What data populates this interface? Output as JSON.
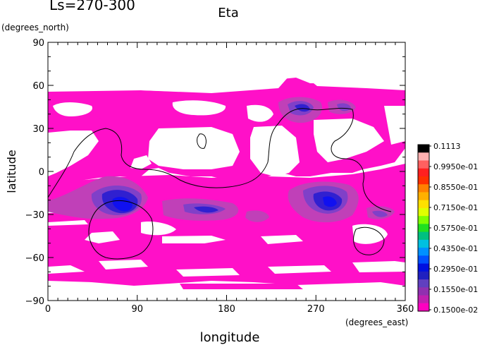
{
  "chart_data": {
    "type": "heatmap",
    "title": "Eta",
    "subtitle": "Ls=270-300",
    "xlabel": "longitude",
    "ylabel": "latitude",
    "xunits": "(degrees_east)",
    "yunits": "(degrees_north)",
    "xlim": [
      0,
      360
    ],
    "ylim": [
      -90,
      90
    ],
    "xticks": [
      "0",
      "90",
      "180",
      "270",
      "360"
    ],
    "xtick_values": [
      0,
      90,
      180,
      270,
      360
    ],
    "yticks": [
      "90",
      "60",
      "30",
      "0",
      "−30",
      "−60",
      "−90"
    ],
    "ytick_values": [
      90,
      60,
      30,
      0,
      -30,
      -60,
      -90
    ],
    "grid": false,
    "colorbar": {
      "labels": [
        "0.1113",
        "0.9950e-01",
        "0.8550e-01",
        "0.7150e-01",
        "0.5750e-01",
        "0.4350e-01",
        "0.2950e-01",
        "0.1550e-01",
        "0.1500e-02"
      ],
      "colors": [
        "#000000",
        "#ffb0b0",
        "#ff6060",
        "#ff2020",
        "#ff3000",
        "#ff8000",
        "#ffb000",
        "#ffe000",
        "#e0ff00",
        "#80ff00",
        "#20e020",
        "#00c080",
        "#00c0e0",
        "#0090ff",
        "#0050ff",
        "#0010e0",
        "#2020c0",
        "#6040c0",
        "#9030b0",
        "#c020b0",
        "#ff00c0"
      ]
    },
    "colors": {
      "low": "#ff10c8",
      "mid": "#c040b8",
      "violet": "#8040c8",
      "high": "#3020d0",
      "peak": "#1010f0"
    }
  }
}
